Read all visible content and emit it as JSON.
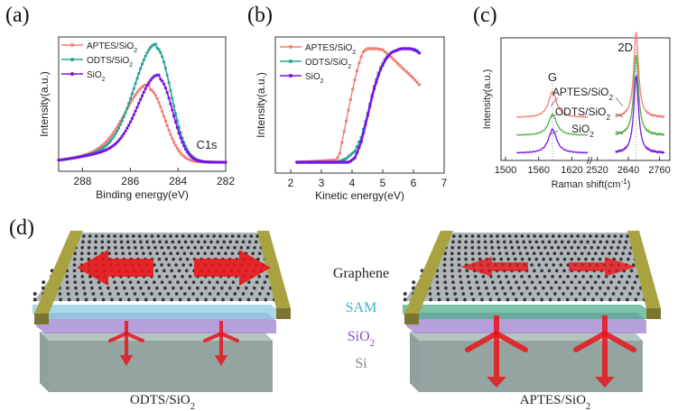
{
  "panel_labels": [
    "(a)",
    "(b)",
    "(c)",
    "(d)"
  ],
  "colors": {
    "APTES": "#ef7f76",
    "ODTS": "#2aa493",
    "SiO2": "#7a12e6",
    "ODTS_raman": "#54b34a",
    "gold": "#a9a240",
    "sam_label": "#3ab4d8",
    "sio2_label": "#8c4fc4",
    "si_label": "#888888",
    "arrow": "#e8161a"
  },
  "chart_data": [
    {
      "type": "line",
      "panel": "(a)",
      "title": "",
      "xlabel": "Binding energy(eV)",
      "ylabel": "Intensity(a.u.)",
      "xlim": [
        289,
        282
      ],
      "x_reversed": true,
      "xticks": [
        "288",
        "286",
        "284",
        "282"
      ],
      "xtick_values": [
        288,
        286,
        284,
        282
      ],
      "annotation": "C1s",
      "legend": {
        "position": "top-left",
        "entries": [
          "APTES/SiO",
          "ODTS/SiO",
          "SiO"
        ],
        "subscripts": [
          "2",
          "2",
          "2"
        ]
      },
      "series": [
        {
          "name": "APTES/SiO2",
          "key": "APTES",
          "peak_x": 285.2,
          "peak_y": 0.63,
          "width": 0.75
        },
        {
          "name": "ODTS/SiO2",
          "key": "ODTS",
          "peak_x": 284.9,
          "peak_y": 1.0,
          "width": 0.72
        },
        {
          "name": "SiO2",
          "key": "SiO2",
          "peak_x": 284.8,
          "peak_y": 0.73,
          "width": 0.68
        }
      ]
    },
    {
      "type": "line",
      "panel": "(b)",
      "title": "",
      "xlabel": "Kinetic energy(eV)",
      "ylabel": "Intensity(a.u.)",
      "xlim": [
        1.5,
        7
      ],
      "xticks": [
        "2",
        "3",
        "4",
        "5",
        "6",
        "7"
      ],
      "xtick_values": [
        2,
        3,
        4,
        5,
        6,
        7
      ],
      "legend": {
        "position": "top-left",
        "entries": [
          "APTES/SiO",
          "ODTS/SiO",
          "SiO"
        ],
        "subscripts": [
          "2",
          "2",
          "2"
        ]
      },
      "series": [
        {
          "name": "APTES/SiO2",
          "key": "APTES",
          "x": [
            2.2,
            3.5,
            3.6,
            3.8,
            4.0,
            4.2,
            4.35,
            4.5,
            4.8,
            5.0,
            5.3,
            5.6,
            6.0,
            6.2
          ],
          "y": [
            0.0,
            0.02,
            0.08,
            0.35,
            0.62,
            0.85,
            0.97,
            1.0,
            1.0,
            0.99,
            0.92,
            0.84,
            0.74,
            0.68
          ]
        },
        {
          "name": "ODTS/SiO2",
          "key": "ODTS",
          "x": [
            2.2,
            3.5,
            3.8,
            4.1,
            4.3,
            4.5,
            4.7,
            4.9,
            5.1,
            5.3,
            5.6,
            5.9,
            6.1,
            6.2
          ],
          "y": [
            0.0,
            0.0,
            0.03,
            0.1,
            0.22,
            0.42,
            0.65,
            0.82,
            0.92,
            0.97,
            1.0,
            1.0,
            0.99,
            0.96
          ]
        },
        {
          "name": "SiO2",
          "key": "SiO2",
          "x": [
            2.2,
            3.9,
            4.1,
            4.3,
            4.5,
            4.7,
            4.9,
            5.1,
            5.3,
            5.6,
            5.9,
            6.1,
            6.2
          ],
          "y": [
            0.0,
            0.0,
            0.04,
            0.18,
            0.4,
            0.63,
            0.8,
            0.91,
            0.97,
            1.0,
            1.0,
            0.98,
            0.96
          ]
        }
      ]
    },
    {
      "type": "line",
      "panel": "(c)",
      "title": "",
      "xlabel": "Raman shift(cm",
      "xlabel_sup": "-1",
      "xlabel_end": ")",
      "ylabel": "Intensity(a.u.)",
      "xticks": [
        "1500",
        "1560",
        "1620",
        "2520",
        "2640",
        "2760"
      ],
      "axis_break": "//",
      "peak_labels": [
        "G",
        "2D"
      ],
      "G_peak": 1585,
      "2D_peak": 2670,
      "series_labels": [
        "APTES/SiO",
        "ODTS/SiO",
        "SiO"
      ],
      "series_label_subscripts": [
        "2",
        "2",
        "2"
      ],
      "series": [
        {
          "name": "APTES/SiO2",
          "key": "APTES",
          "offset": 0.48,
          "G_height": 0.52,
          "2D_height": 1.0
        },
        {
          "name": "ODTS/SiO2",
          "key": "ODTS_raman",
          "offset": 0.24,
          "G_height": 0.42,
          "2D_height": 1.0
        },
        {
          "name": "SiO2",
          "key": "SiO2",
          "offset": 0.0,
          "G_height": 0.48,
          "2D_height": 1.0
        }
      ]
    }
  ],
  "diagram": {
    "layer_labels": {
      "graphene": "Graphene",
      "sam": "SAM",
      "sio2": "SiO",
      "sio2_sub": "2",
      "si": "Si"
    },
    "left_caption": "ODTS/SiO",
    "left_caption_sub": "2",
    "right_caption": "APTES/SiO",
    "right_caption_sub": "2"
  }
}
